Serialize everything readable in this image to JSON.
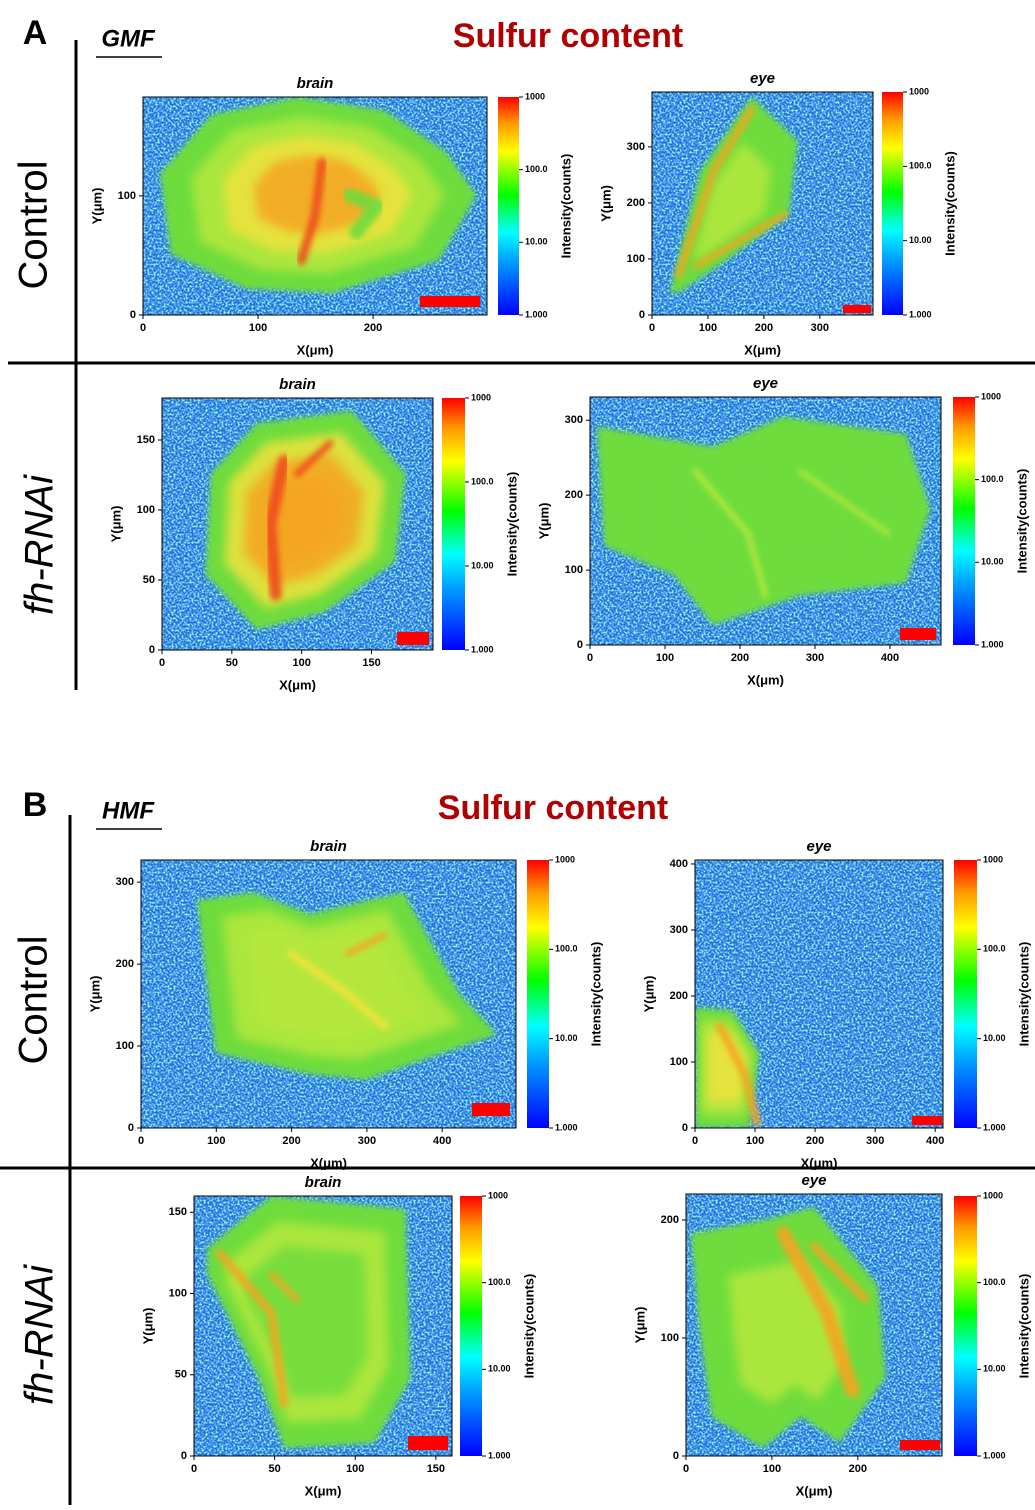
{
  "figure": {
    "panels": [
      {
        "label": "A",
        "field": "GMF",
        "title": "Sulfur content"
      },
      {
        "label": "B",
        "field": "HMF",
        "title": "Sulfur content"
      }
    ],
    "rows": [
      "Control",
      "fh-RNAi",
      "Control",
      "fh-RNAi"
    ]
  },
  "chart_data": [
    {
      "type": "heatmap",
      "title": "brain",
      "xlabel": "X(μm)",
      "ylabel": "Y(μm)",
      "xlim": [
        0,
        299
      ],
      "ylim": [
        0,
        183
      ],
      "xticks": [
        0,
        100,
        200
      ],
      "yticks": [
        0,
        100
      ],
      "colorbar": {
        "label": "Intensity(counts)",
        "scale": "log",
        "lim": [
          1,
          1000
        ],
        "ticks": [
          {
            "value": 1,
            "label": "1.000"
          },
          {
            "value": 10,
            "label": "10.00"
          },
          {
            "value": 100,
            "label": "100.0"
          },
          1000
        ]
      }
    },
    {
      "type": "heatmap",
      "title": "eye",
      "xlabel": "X(μm)",
      "ylabel": "Y(μm)",
      "xlim": [
        0,
        395
      ],
      "ylim": [
        0,
        398
      ],
      "xticks": [
        0,
        100,
        200,
        300
      ],
      "yticks": [
        0,
        100,
        200,
        300
      ],
      "colorbar": {
        "label": "Intensity(counts)",
        "scale": "log",
        "lim": [
          1,
          1000
        ],
        "ticks": [
          {
            "value": 1,
            "label": "1.000"
          },
          {
            "value": 10,
            "label": "10.00"
          },
          {
            "value": 100,
            "label": "100.0"
          },
          1000
        ]
      }
    },
    {
      "type": "heatmap",
      "title": "brain",
      "xlabel": "X(μm)",
      "ylabel": "Y(μm)",
      "xlim": [
        0,
        194
      ],
      "ylim": [
        0,
        180
      ],
      "xticks": [
        0,
        50,
        100,
        150
      ],
      "yticks": [
        0,
        50,
        100,
        150
      ],
      "colorbar": {
        "label": "Intensity(counts)",
        "scale": "log",
        "lim": [
          1,
          1000
        ],
        "ticks": [
          {
            "value": 1,
            "label": "1.000"
          },
          {
            "value": 10,
            "label": "10.00"
          },
          {
            "value": 100,
            "label": "100.0"
          },
          1000
        ]
      }
    },
    {
      "type": "heatmap",
      "title": "eye",
      "xlabel": "X(μm)",
      "ylabel": "Y(μm)",
      "xlim": [
        0,
        468
      ],
      "ylim": [
        0,
        331
      ],
      "xticks": [
        0,
        100,
        200,
        300,
        400
      ],
      "yticks": [
        0,
        100,
        200,
        300
      ],
      "colorbar": {
        "label": "Intensity(counts)",
        "scale": "log",
        "lim": [
          1,
          1000
        ],
        "ticks": [
          {
            "value": 1,
            "label": "1.000"
          },
          {
            "value": 10,
            "label": "10.00"
          },
          {
            "value": 100,
            "label": "100.0"
          },
          1000
        ]
      }
    },
    {
      "type": "heatmap",
      "title": "brain",
      "xlabel": "X(μm)",
      "ylabel": "Y(μm)",
      "xlim": [
        0,
        498
      ],
      "ylim": [
        0,
        327
      ],
      "xticks": [
        0,
        100,
        200,
        300,
        400
      ],
      "yticks": [
        0,
        100,
        200,
        300
      ],
      "colorbar": {
        "label": "Intensity(counts)",
        "scale": "log",
        "lim": [
          1,
          1000
        ],
        "ticks": [
          {
            "value": 1,
            "label": "1.000"
          },
          {
            "value": 10,
            "label": "10.00"
          },
          {
            "value": 100,
            "label": "100.0"
          },
          1000
        ]
      }
    },
    {
      "type": "heatmap",
      "title": "eye",
      "xlabel": "X(μm)",
      "ylabel": "Y(μm)",
      "xlim": [
        0,
        413
      ],
      "ylim": [
        0,
        406
      ],
      "xticks": [
        0,
        100,
        200,
        300,
        400
      ],
      "yticks": [
        0,
        100,
        200,
        300,
        400
      ],
      "colorbar": {
        "label": "Intensity(counts)",
        "scale": "log",
        "lim": [
          1,
          1000
        ],
        "ticks": [
          {
            "value": 1,
            "label": "1.000"
          },
          {
            "value": 10,
            "label": "10.00"
          },
          {
            "value": 100,
            "label": "100.0"
          },
          1000
        ]
      }
    },
    {
      "type": "heatmap",
      "title": "brain",
      "xlabel": "X(μm)",
      "ylabel": "Y(μm)",
      "xlim": [
        0,
        160
      ],
      "ylim": [
        0,
        160
      ],
      "xticks": [
        0,
        50,
        100,
        150
      ],
      "yticks": [
        0,
        50,
        100,
        150
      ],
      "colorbar": {
        "label": "Intensity(counts)",
        "scale": "log",
        "lim": [
          1,
          1000
        ],
        "ticks": [
          {
            "value": 1,
            "label": "1.000"
          },
          {
            "value": 10,
            "label": "10.00"
          },
          {
            "value": 100,
            "label": "100.0"
          },
          1000
        ]
      }
    },
    {
      "type": "heatmap",
      "title": "eye",
      "xlabel": "X(μm)",
      "ylabel": "Y(μm)",
      "xlim": [
        0,
        298
      ],
      "ylim": [
        0,
        222
      ],
      "xticks": [
        0,
        100,
        200
      ],
      "yticks": [
        0,
        100,
        200
      ],
      "colorbar": {
        "label": "Intensity(counts)",
        "scale": "log",
        "lim": [
          1,
          1000
        ],
        "ticks": [
          {
            "value": 1,
            "label": "1.000"
          },
          {
            "value": 10,
            "label": "10.00"
          },
          {
            "value": 100,
            "label": "100.0"
          },
          1000
        ]
      }
    }
  ]
}
